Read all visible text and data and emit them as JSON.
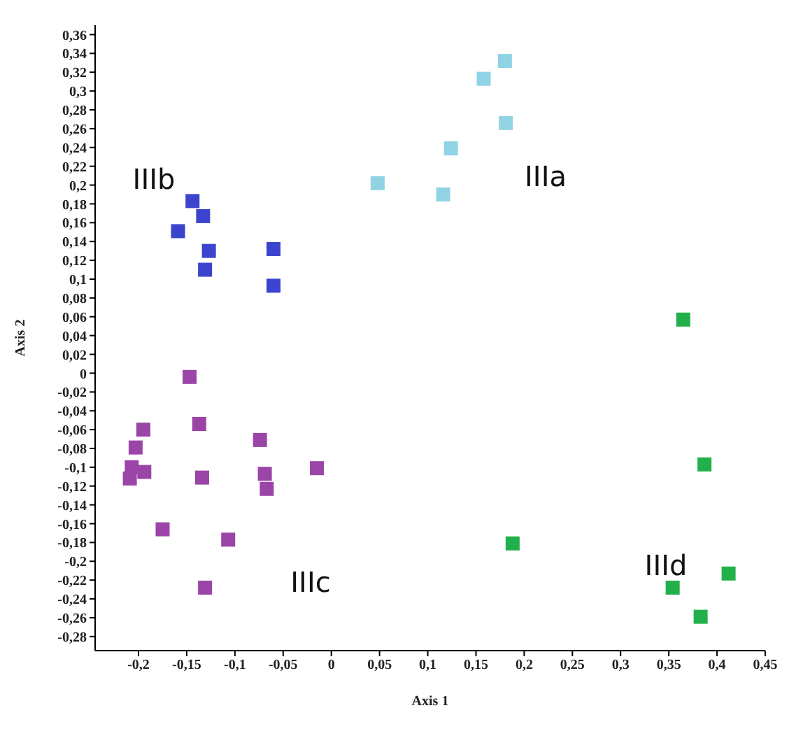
{
  "chart_data": {
    "type": "scatter",
    "xlabel": "Axis 1",
    "ylabel": "Axis 2",
    "marker": "square",
    "grid": false,
    "legend": false,
    "xlim": [
      -0.245,
      0.45
    ],
    "ylim": [
      -0.295,
      0.37
    ],
    "xticks": [
      {
        "value": -0.2,
        "label": "-0,2"
      },
      {
        "value": -0.15,
        "label": "-0,15"
      },
      {
        "value": -0.1,
        "label": "-0,1"
      },
      {
        "value": -0.05,
        "label": "-0,05"
      },
      0,
      {
        "value": 0.05,
        "label": "0,05"
      },
      {
        "value": 0.1,
        "label": "0,1"
      },
      {
        "value": 0.15,
        "label": "0,15"
      },
      {
        "value": 0.2,
        "label": "0,2"
      },
      {
        "value": 0.25,
        "label": "0,25"
      },
      {
        "value": 0.3,
        "label": "0,3"
      },
      {
        "value": 0.35,
        "label": "0,35"
      },
      {
        "value": 0.4,
        "label": "0,4"
      },
      {
        "value": 0.45,
        "label": "0,45"
      }
    ],
    "yticks": [
      {
        "value": -0.28,
        "label": "-0,28"
      },
      {
        "value": -0.26,
        "label": "-0,26"
      },
      {
        "value": -0.24,
        "label": "-0,24"
      },
      {
        "value": -0.22,
        "label": "-0,22"
      },
      {
        "value": -0.2,
        "label": "-0,2"
      },
      {
        "value": -0.18,
        "label": "-0,18"
      },
      {
        "value": -0.16,
        "label": "-0,16"
      },
      {
        "value": -0.14,
        "label": "-0,14"
      },
      {
        "value": -0.12,
        "label": "-0,12"
      },
      {
        "value": -0.1,
        "label": "-0,1"
      },
      {
        "value": -0.08,
        "label": "-0,08"
      },
      {
        "value": -0.06,
        "label": "-0,06"
      },
      {
        "value": -0.04,
        "label": "-0,04"
      },
      {
        "value": -0.02,
        "label": "-0,02"
      },
      0,
      {
        "value": 0.02,
        "label": "0,02"
      },
      {
        "value": 0.04,
        "label": "0,04"
      },
      {
        "value": 0.06,
        "label": "0,06"
      },
      {
        "value": 0.08,
        "label": "0,08"
      },
      {
        "value": 0.1,
        "label": "0,1"
      },
      {
        "value": 0.12,
        "label": "0,12"
      },
      {
        "value": 0.14,
        "label": "0,14"
      },
      {
        "value": 0.16,
        "label": "0,16"
      },
      {
        "value": 0.18,
        "label": "0,18"
      },
      {
        "value": 0.2,
        "label": "0,2"
      },
      {
        "value": 0.22,
        "label": "0,22"
      },
      {
        "value": 0.24,
        "label": "0,24"
      },
      {
        "value": 0.26,
        "label": "0,26"
      },
      {
        "value": 0.28,
        "label": "0,28"
      },
      {
        "value": 0.3,
        "label": "0,3"
      },
      {
        "value": 0.32,
        "label": "0,32"
      },
      {
        "value": 0.34,
        "label": "0,34"
      },
      {
        "value": 0.36,
        "label": "0,36"
      }
    ],
    "annotations": [
      "IIIa",
      "IIIb",
      "IIIc",
      "IIId"
    ],
    "series": [
      {
        "color": "#8fd3e5",
        "x": [
          0.18,
          0.158,
          0.181,
          0.124,
          0.048,
          0.116
        ],
        "values": [
          0.332,
          0.313,
          0.266,
          0.239,
          0.202,
          0.19
        ]
      },
      {
        "color": "#3a44cc",
        "x": [
          -0.144,
          -0.133,
          -0.159,
          -0.127,
          -0.131,
          -0.06,
          -0.06
        ],
        "values": [
          0.183,
          0.167,
          0.151,
          0.13,
          0.11,
          0.132,
          0.093
        ]
      },
      {
        "color": "#9b45a8",
        "x": [
          -0.147,
          -0.137,
          -0.195,
          -0.203,
          -0.207,
          -0.209,
          -0.194,
          -0.134,
          -0.074,
          -0.069,
          -0.067,
          -0.015,
          -0.175,
          -0.107,
          -0.131
        ],
        "values": [
          -0.004,
          -0.054,
          -0.06,
          -0.079,
          -0.1,
          -0.112,
          -0.105,
          -0.111,
          -0.071,
          -0.107,
          -0.123,
          -0.101,
          -0.166,
          -0.177,
          -0.228
        ]
      },
      {
        "color": "#22b04a",
        "x": [
          0.365,
          0.387,
          0.188,
          0.412,
          0.354,
          0.383
        ],
        "values": [
          0.057,
          -0.097,
          -0.181,
          -0.213,
          -0.228,
          -0.259
        ]
      }
    ]
  }
}
